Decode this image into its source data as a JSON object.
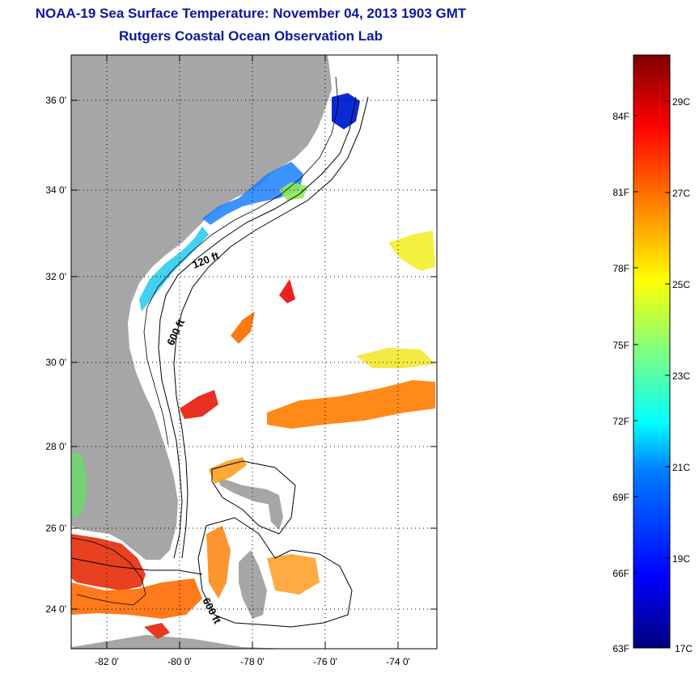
{
  "title": "NOAA-19 Sea Surface Temperature:  November 04, 2013 1903 GMT",
  "subtitle": "Rutgers Coastal Ocean Observation Lab",
  "axes": {
    "lat_ticks": [
      "36 0'",
      "34 0'",
      "32 0'",
      "30 0'",
      "28 0'",
      "26 0'",
      "24 0'"
    ],
    "lon_ticks": [
      "-82 0'",
      "-80 0'",
      "-78 0'",
      "-76 0'",
      "-74 0'"
    ]
  },
  "contour_labels": [
    "120 ft",
    "600 ft",
    "600 ft"
  ],
  "colorbar": {
    "f_labels": [
      "84F",
      "81F",
      "78F",
      "75F",
      "72F",
      "69F",
      "66F",
      "63F"
    ],
    "c_labels": [
      "29C",
      "27C",
      "25C",
      "23C",
      "21C",
      "19C",
      "17C"
    ],
    "colors": [
      "#7f0000",
      "#ff0000",
      "#ff7f00",
      "#ffff00",
      "#7fff7f",
      "#00ffff",
      "#007fff",
      "#0000ff",
      "#00007f"
    ]
  },
  "colors": {
    "title": "#0a1a9c",
    "land": "#a6a6a6",
    "ocean": "#ffffff"
  }
}
